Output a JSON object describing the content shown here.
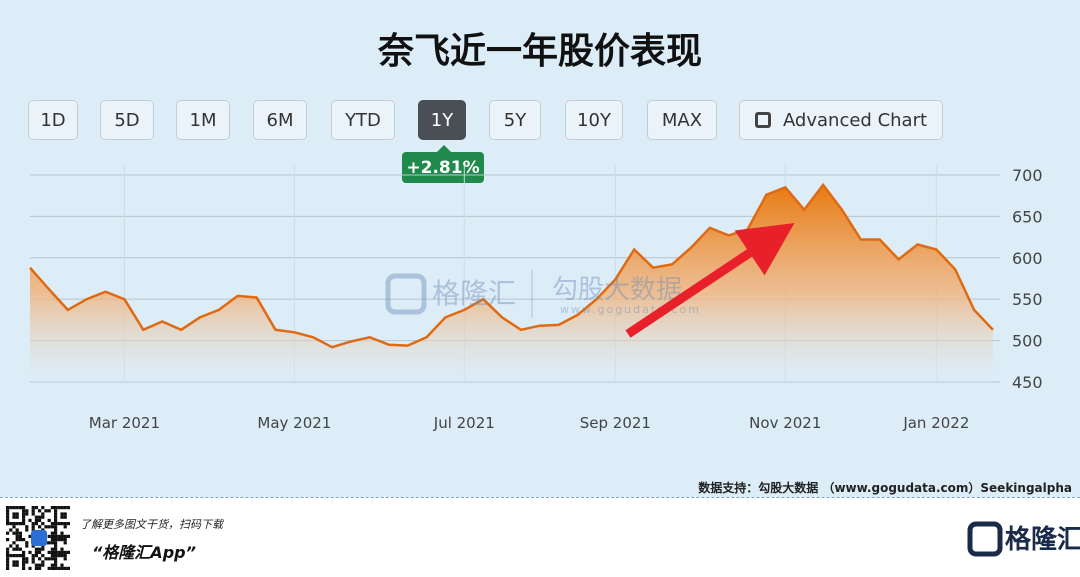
{
  "ui": {
    "title": "奈飞近一年股价表现",
    "buttons": [
      "1D",
      "5D",
      "1M",
      "6M",
      "YTD",
      "1Y",
      "5Y",
      "10Y",
      "MAX",
      "Advanced Chart"
    ],
    "active_button": 5,
    "change_badge": "+2.81%",
    "watermark": [
      "格隆汇",
      "勾股大数据",
      "www.gogudata.com"
    ],
    "source": "数据支持：勾股大数据 （www.gogudata.com）Seekingalpha",
    "footer_text": "了解更多图文干货，扫码下载",
    "footer_app": "“格隆汇App”",
    "logo": "格隆汇"
  },
  "chart_data": {
    "type": "area",
    "color": "#e06a12",
    "categories": [
      null,
      null,
      null,
      null,
      null,
      "Mar 2021",
      null,
      null,
      null,
      null,
      null,
      null,
      null,
      null,
      "May 2021",
      null,
      null,
      null,
      null,
      null,
      null,
      null,
      null,
      "Jul 2021",
      null,
      null,
      null,
      null,
      null,
      null,
      null,
      "Sep 2021",
      null,
      null,
      null,
      null,
      null,
      null,
      null,
      null,
      "Nov 2021",
      null,
      null,
      null,
      null,
      null,
      null,
      null,
      "Jan 2022",
      null,
      null,
      null
    ],
    "values": [
      588,
      562,
      537,
      550,
      559,
      550,
      513,
      523,
      513,
      528,
      537,
      554,
      552,
      513,
      510,
      504,
      492,
      499,
      504,
      495,
      494,
      504,
      528,
      537,
      550,
      528,
      513,
      518,
      519,
      531,
      550,
      574,
      610,
      588,
      592,
      612,
      636,
      627,
      634,
      676,
      685,
      658,
      688,
      658,
      622,
      622,
      598,
      616,
      610,
      586,
      537,
      513
    ],
    "ylim": [
      450,
      712
    ],
    "yticks": [
      450,
      500,
      550,
      600,
      650,
      700
    ],
    "grid": true
  }
}
